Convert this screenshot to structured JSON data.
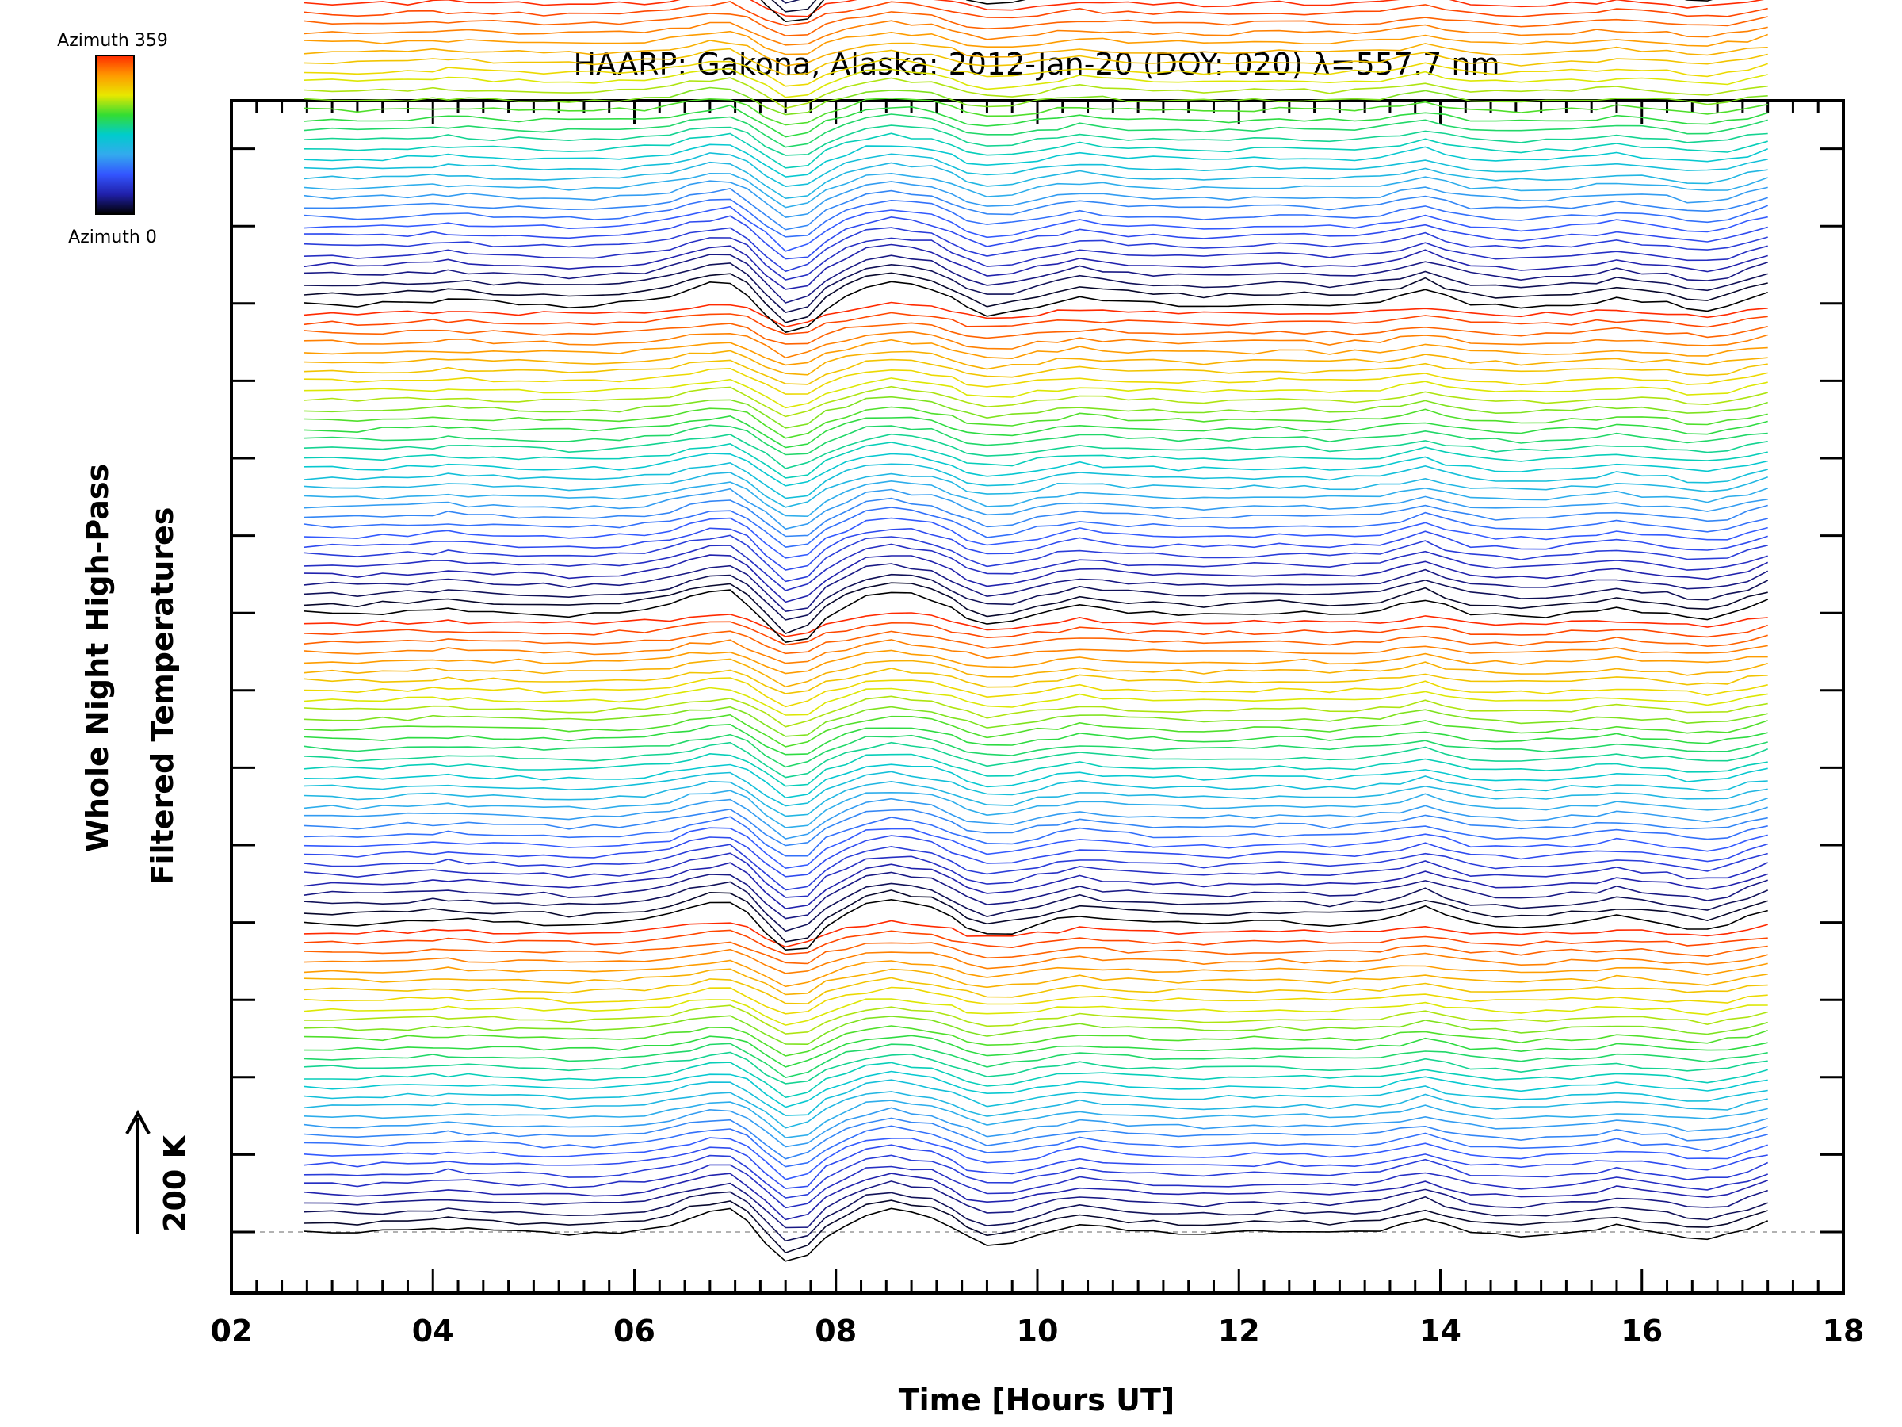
{
  "chart_data": {
    "type": "line",
    "title": "HAARP: Gakona,  Alaska: 2012-Jan-20 (DOY: 020) λ=557.7 nm",
    "xlabel": "Time [Hours UT]",
    "ylabel_line1": "Whole Night High-Pass",
    "ylabel_line2": "Filtered Temperatures",
    "scale_bar_label": "200 K",
    "xlim": [
      2,
      18
    ],
    "x_ticks": [
      "02",
      "04",
      "06",
      "08",
      "10",
      "12",
      "14",
      "16",
      "18"
    ],
    "colorbar": {
      "top_label": "Azimuth 359",
      "bottom_label": "Azimuth 0",
      "colors": [
        "#ff2a00",
        "#ff9900",
        "#e8e800",
        "#33dd33",
        "#00cccc",
        "#33aaee",
        "#3355ff",
        "#2020aa",
        "#000000"
      ]
    },
    "stack": {
      "n_series": 160,
      "series_per_group": 32,
      "offset_per_series_K": 20
    },
    "time_hours": [
      2.72,
      3.0,
      3.25,
      3.5,
      3.75,
      4.0,
      4.15,
      4.35,
      4.6,
      4.85,
      5.1,
      5.35,
      5.6,
      5.85,
      6.1,
      6.35,
      6.55,
      6.75,
      6.95,
      7.12,
      7.3,
      7.5,
      7.72,
      7.9,
      8.1,
      8.3,
      8.55,
      8.75,
      8.95,
      9.15,
      9.3,
      9.5,
      9.75,
      10.0,
      10.2,
      10.42,
      10.65,
      10.9,
      11.15,
      11.4,
      11.65,
      11.9,
      12.15,
      12.4,
      12.65,
      12.9,
      13.15,
      13.4,
      13.6,
      13.85,
      14.05,
      14.3,
      14.55,
      14.8,
      15.05,
      15.3,
      15.55,
      15.75,
      16.0,
      16.25,
      16.45,
      16.65,
      16.85,
      17.05,
      17.25
    ],
    "reference_profile_K": [
      0,
      0,
      -3,
      0,
      3,
      6,
      8,
      5,
      2,
      0,
      -2,
      -5,
      -3,
      0,
      5,
      15,
      30,
      40,
      45,
      20,
      -20,
      -60,
      -50,
      -10,
      15,
      35,
      45,
      38,
      30,
      10,
      -10,
      -25,
      -20,
      -5,
      5,
      15,
      8,
      3,
      0,
      -2,
      -4,
      -3,
      0,
      2,
      0,
      -3,
      0,
      5,
      15,
      30,
      15,
      0,
      -5,
      -8,
      -5,
      0,
      5,
      12,
      5,
      0,
      -10,
      -12,
      -5,
      10,
      25
    ]
  }
}
